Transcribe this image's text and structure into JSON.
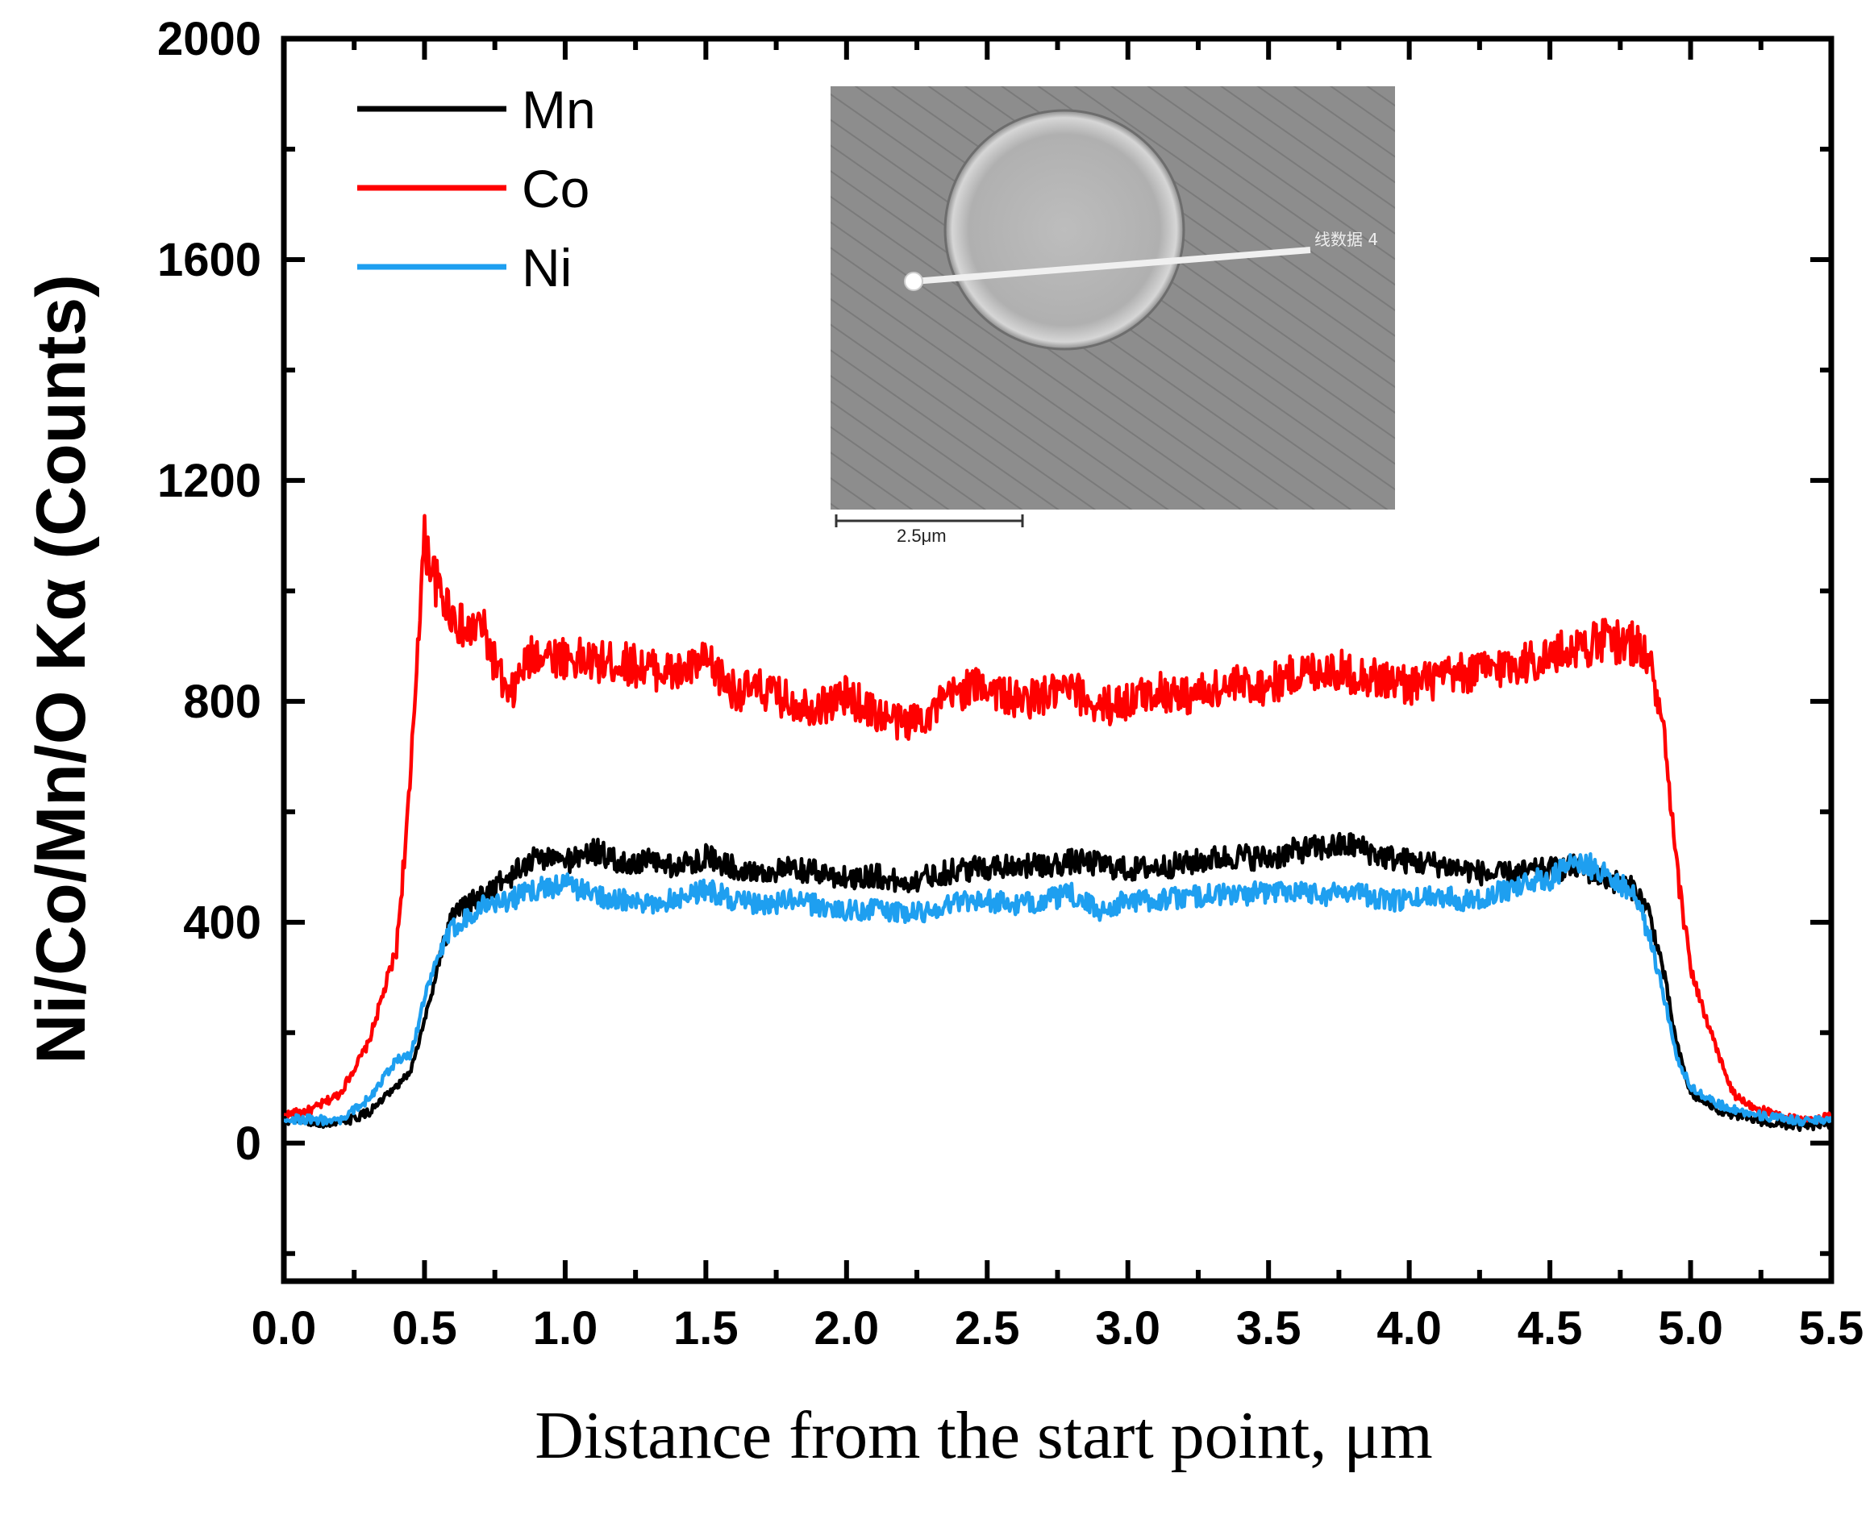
{
  "chart_data": {
    "type": "line",
    "xlabel": "Distance from the start point, μm",
    "ylabel": "Ni/Co/Mn/O Kα (Counts)",
    "xlim": [
      0,
      5.5
    ],
    "ylim": [
      -250,
      2000
    ],
    "xticks": [
      "0.0",
      "0.5",
      "1.0",
      "1.5",
      "2.0",
      "2.5",
      "3.0",
      "3.5",
      "4.0",
      "4.5",
      "5.0",
      "5.5"
    ],
    "yticks": [
      "0",
      "400",
      "800",
      "1200",
      "1600",
      "2000"
    ],
    "series": [
      {
        "name": "Mn",
        "color": "#000000",
        "points": [
          [
            0.0,
            40
          ],
          [
            0.2,
            35
          ],
          [
            0.3,
            55
          ],
          [
            0.4,
            100
          ],
          [
            0.45,
            130
          ],
          [
            0.5,
            220
          ],
          [
            0.55,
            330
          ],
          [
            0.6,
            410
          ],
          [
            0.7,
            450
          ],
          [
            0.8,
            480
          ],
          [
            0.9,
            520
          ],
          [
            1.0,
            510
          ],
          [
            1.1,
            530
          ],
          [
            1.2,
            505
          ],
          [
            1.3,
            510
          ],
          [
            1.4,
            500
          ],
          [
            1.5,
            520
          ],
          [
            1.6,
            500
          ],
          [
            1.7,
            490
          ],
          [
            1.8,
            495
          ],
          [
            1.9,
            490
          ],
          [
            2.0,
            480
          ],
          [
            2.1,
            485
          ],
          [
            2.2,
            470
          ],
          [
            2.3,
            485
          ],
          [
            2.4,
            495
          ],
          [
            2.5,
            500
          ],
          [
            2.6,
            505
          ],
          [
            2.7,
            500
          ],
          [
            2.8,
            510
          ],
          [
            2.9,
            505
          ],
          [
            3.0,
            495
          ],
          [
            3.1,
            500
          ],
          [
            3.2,
            505
          ],
          [
            3.3,
            515
          ],
          [
            3.4,
            520
          ],
          [
            3.5,
            515
          ],
          [
            3.6,
            530
          ],
          [
            3.7,
            535
          ],
          [
            3.8,
            540
          ],
          [
            3.9,
            520
          ],
          [
            4.0,
            510
          ],
          [
            4.1,
            505
          ],
          [
            4.2,
            495
          ],
          [
            4.3,
            485
          ],
          [
            4.4,
            490
          ],
          [
            4.5,
            495
          ],
          [
            4.6,
            500
          ],
          [
            4.7,
            480
          ],
          [
            4.8,
            460
          ],
          [
            4.85,
            420
          ],
          [
            4.9,
            320
          ],
          [
            4.95,
            180
          ],
          [
            5.0,
            90
          ],
          [
            5.1,
            60
          ],
          [
            5.2,
            45
          ],
          [
            5.3,
            35
          ],
          [
            5.4,
            30
          ],
          [
            5.5,
            35
          ]
        ]
      },
      {
        "name": "Co",
        "color": "#ff0000",
        "points": [
          [
            0.0,
            50
          ],
          [
            0.1,
            60
          ],
          [
            0.2,
            90
          ],
          [
            0.3,
            180
          ],
          [
            0.4,
            350
          ],
          [
            0.45,
            650
          ],
          [
            0.48,
            950
          ],
          [
            0.5,
            1090
          ],
          [
            0.55,
            1000
          ],
          [
            0.6,
            960
          ],
          [
            0.65,
            920
          ],
          [
            0.7,
            940
          ],
          [
            0.75,
            870
          ],
          [
            0.8,
            800
          ],
          [
            0.85,
            860
          ],
          [
            0.9,
            890
          ],
          [
            1.0,
            880
          ],
          [
            1.1,
            870
          ],
          [
            1.2,
            870
          ],
          [
            1.3,
            860
          ],
          [
            1.4,
            850
          ],
          [
            1.5,
            870
          ],
          [
            1.6,
            820
          ],
          [
            1.7,
            820
          ],
          [
            1.8,
            800
          ],
          [
            1.9,
            790
          ],
          [
            2.0,
            810
          ],
          [
            2.1,
            780
          ],
          [
            2.2,
            760
          ],
          [
            2.3,
            780
          ],
          [
            2.4,
            820
          ],
          [
            2.5,
            830
          ],
          [
            2.6,
            800
          ],
          [
            2.7,
            810
          ],
          [
            2.8,
            820
          ],
          [
            2.9,
            790
          ],
          [
            3.0,
            800
          ],
          [
            3.1,
            820
          ],
          [
            3.2,
            810
          ],
          [
            3.3,
            820
          ],
          [
            3.4,
            830
          ],
          [
            3.5,
            830
          ],
          [
            3.6,
            850
          ],
          [
            3.7,
            860
          ],
          [
            3.8,
            850
          ],
          [
            3.9,
            840
          ],
          [
            4.0,
            830
          ],
          [
            4.1,
            840
          ],
          [
            4.2,
            850
          ],
          [
            4.3,
            860
          ],
          [
            4.4,
            870
          ],
          [
            4.5,
            880
          ],
          [
            4.6,
            900
          ],
          [
            4.7,
            910
          ],
          [
            4.8,
            905
          ],
          [
            4.85,
            880
          ],
          [
            4.9,
            760
          ],
          [
            4.95,
            500
          ],
          [
            5.0,
            320
          ],
          [
            5.05,
            230
          ],
          [
            5.1,
            160
          ],
          [
            5.15,
            90
          ],
          [
            5.2,
            70
          ],
          [
            5.3,
            50
          ],
          [
            5.4,
            40
          ],
          [
            5.5,
            50
          ]
        ]
      },
      {
        "name": "Ni",
        "color": "#1e9ff0",
        "points": [
          [
            0.0,
            45
          ],
          [
            0.2,
            40
          ],
          [
            0.3,
            80
          ],
          [
            0.4,
            150
          ],
          [
            0.45,
            160
          ],
          [
            0.5,
            260
          ],
          [
            0.55,
            340
          ],
          [
            0.6,
            390
          ],
          [
            0.7,
            430
          ],
          [
            0.8,
            440
          ],
          [
            0.9,
            460
          ],
          [
            1.0,
            470
          ],
          [
            1.1,
            450
          ],
          [
            1.2,
            440
          ],
          [
            1.3,
            430
          ],
          [
            1.4,
            445
          ],
          [
            1.5,
            460
          ],
          [
            1.6,
            440
          ],
          [
            1.7,
            430
          ],
          [
            1.8,
            440
          ],
          [
            1.9,
            430
          ],
          [
            2.0,
            420
          ],
          [
            2.1,
            425
          ],
          [
            2.2,
            415
          ],
          [
            2.3,
            420
          ],
          [
            2.4,
            440
          ],
          [
            2.5,
            440
          ],
          [
            2.6,
            430
          ],
          [
            2.7,
            440
          ],
          [
            2.8,
            450
          ],
          [
            2.9,
            420
          ],
          [
            3.0,
            440
          ],
          [
            3.1,
            440
          ],
          [
            3.2,
            445
          ],
          [
            3.3,
            450
          ],
          [
            3.4,
            450
          ],
          [
            3.5,
            455
          ],
          [
            3.6,
            460
          ],
          [
            3.7,
            450
          ],
          [
            3.8,
            460
          ],
          [
            3.9,
            440
          ],
          [
            4.0,
            440
          ],
          [
            4.1,
            450
          ],
          [
            4.2,
            440
          ],
          [
            4.3,
            450
          ],
          [
            4.4,
            470
          ],
          [
            4.5,
            480
          ],
          [
            4.6,
            510
          ],
          [
            4.7,
            490
          ],
          [
            4.8,
            450
          ],
          [
            4.85,
            380
          ],
          [
            4.9,
            280
          ],
          [
            4.95,
            160
          ],
          [
            5.0,
            100
          ],
          [
            5.1,
            70
          ],
          [
            5.2,
            55
          ],
          [
            5.3,
            45
          ],
          [
            5.4,
            40
          ],
          [
            5.5,
            45
          ]
        ]
      }
    ],
    "legend": [
      "Mn",
      "Co",
      "Ni"
    ],
    "legend_position": "top-left",
    "inset": {
      "description": "SEM image of particle with line-scan path",
      "line_label": "线数据 4",
      "scale_bar": "2.5μm"
    }
  }
}
